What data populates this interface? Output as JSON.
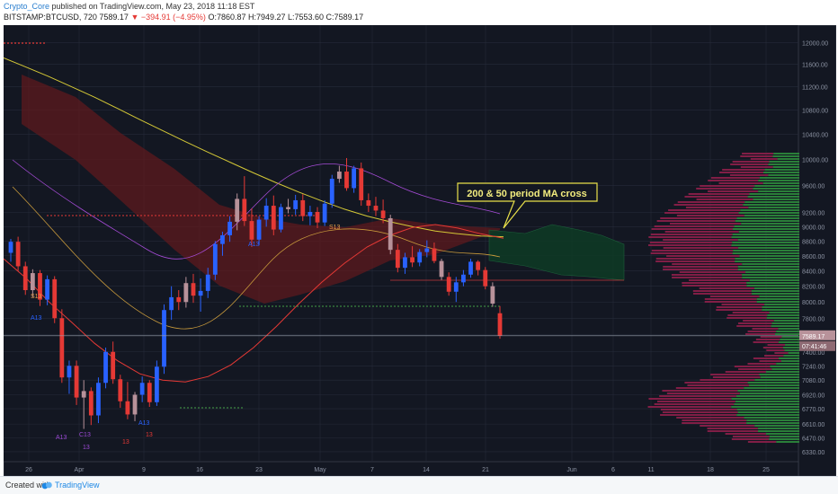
{
  "header": {
    "author": "Crypto_Core",
    "published_text": "published on TradingView.com, May 23, 2018 11:18 EST",
    "symbol": "BITSTAMP:BTCUSD, 720",
    "last_price": "7589.17",
    "change": "−394.91 (−4.95%)",
    "ohlc": "O:7860.87 H:7949.27 L:7553.60 C:7589.17"
  },
  "footer": {
    "created_with": "Created with",
    "brand": "TradingView"
  },
  "colors": {
    "background": "#131722",
    "grid": "#262b3a",
    "up_candle": "#2962ff",
    "down_candle": "#e53935",
    "neutral_candle": "#b8929a",
    "ma200": "#d4c836",
    "ma50": "#e53935",
    "cloud_bear": "#5e1a1d",
    "cloud_bull": "#0e3b25",
    "annotation_fill": "#131722",
    "annotation_border": "#e8e04a"
  },
  "chart_data": {
    "type": "candlestick",
    "symbol": "BITSTAMP:BTCUSD",
    "interval": "720",
    "x_tick_labels": [
      "26",
      "Apr",
      "9",
      "16",
      "23",
      "May",
      "7",
      "14",
      "21",
      "Jun",
      "6",
      "11",
      "18",
      "25"
    ],
    "y_tick_labels": [
      "12000.00",
      "11600.00",
      "11200.00",
      "10800.00",
      "10400.00",
      "10000.00",
      "9600.00",
      "9200.00",
      "9000.00",
      "8800.00",
      "8600.00",
      "8400.00",
      "8200.00",
      "8000.00",
      "7800.00",
      "7600.00",
      "7400.00",
      "7240.00",
      "7080.00",
      "6920.00",
      "6770.00",
      "6610.00",
      "6470.00",
      "6330.00"
    ],
    "y_scale": "log",
    "ylim": [
      6250,
      12300
    ],
    "price_labels": [
      "7589.17",
      "07:41:46"
    ],
    "annotation": "200 & 50 period MA cross",
    "signal_labels": [
      "S13",
      "A13",
      "S13",
      "A13",
      "A13",
      "C13",
      "A13",
      "13",
      "13",
      "13"
    ],
    "ohlc_last": {
      "open": 7860.87,
      "high": 7949.27,
      "low": 7553.6,
      "close": 7589.17
    },
    "moving_averages": [
      {
        "name": "MA 200",
        "values": [
          11720,
          11550,
          11380,
          11200,
          11020,
          10830,
          10640,
          10460,
          10280,
          10110,
          9950,
          9790,
          9640,
          9500,
          9370,
          9250,
          9150,
          9070,
          9000,
          8940,
          8900,
          8870,
          8860
        ]
      },
      {
        "name": "MA 50",
        "values": [
          8560,
          8300,
          8000,
          7750,
          7500,
          7300,
          7150,
          7080,
          7060,
          7120,
          7250,
          7450,
          7700,
          7980,
          8250,
          8500,
          8720,
          8880,
          8990,
          9030,
          8980,
          8900,
          8840
        ]
      }
    ],
    "candles": [
      {
        "o": 8640,
        "h": 8830,
        "l": 8520,
        "c": 8790
      },
      {
        "o": 8790,
        "h": 8860,
        "l": 8400,
        "c": 8460
      },
      {
        "o": 8460,
        "h": 8520,
        "l": 8090,
        "c": 8150
      },
      {
        "o": 8150,
        "h": 8420,
        "l": 8060,
        "c": 8370
      },
      {
        "o": 8370,
        "h": 8410,
        "l": 7950,
        "c": 8030
      },
      {
        "o": 8030,
        "h": 8340,
        "l": 7960,
        "c": 8290
      },
      {
        "o": 8290,
        "h": 8330,
        "l": 7740,
        "c": 7800
      },
      {
        "o": 7800,
        "h": 7910,
        "l": 7050,
        "c": 7110
      },
      {
        "o": 7110,
        "h": 7300,
        "l": 6930,
        "c": 7240
      },
      {
        "o": 7240,
        "h": 7300,
        "l": 6810,
        "c": 6890
      },
      {
        "o": 6890,
        "h": 7080,
        "l": 6560,
        "c": 6960
      },
      {
        "o": 6960,
        "h": 7000,
        "l": 6600,
        "c": 6700
      },
      {
        "o": 6700,
        "h": 7110,
        "l": 6620,
        "c": 7050
      },
      {
        "o": 7050,
        "h": 7450,
        "l": 6990,
        "c": 7400
      },
      {
        "o": 7400,
        "h": 7520,
        "l": 7040,
        "c": 7090
      },
      {
        "o": 7090,
        "h": 7140,
        "l": 6780,
        "c": 6850
      },
      {
        "o": 6850,
        "h": 7060,
        "l": 6660,
        "c": 6710
      },
      {
        "o": 6710,
        "h": 6950,
        "l": 6640,
        "c": 6920
      },
      {
        "o": 6920,
        "h": 7120,
        "l": 6840,
        "c": 7050
      },
      {
        "o": 7050,
        "h": 7080,
        "l": 6790,
        "c": 6840
      },
      {
        "o": 6840,
        "h": 7300,
        "l": 6800,
        "c": 7230
      },
      {
        "o": 7230,
        "h": 7970,
        "l": 7150,
        "c": 7900
      },
      {
        "o": 7900,
        "h": 8200,
        "l": 7780,
        "c": 8060
      },
      {
        "o": 8060,
        "h": 8150,
        "l": 7900,
        "c": 8000
      },
      {
        "o": 8000,
        "h": 8320,
        "l": 7930,
        "c": 8240
      },
      {
        "o": 8240,
        "h": 8360,
        "l": 7990,
        "c": 8080
      },
      {
        "o": 8080,
        "h": 8300,
        "l": 7880,
        "c": 8140
      },
      {
        "o": 8140,
        "h": 8440,
        "l": 8050,
        "c": 8350
      },
      {
        "o": 8350,
        "h": 8800,
        "l": 8280,
        "c": 8760
      },
      {
        "o": 8760,
        "h": 8930,
        "l": 8600,
        "c": 8880
      },
      {
        "o": 8880,
        "h": 9150,
        "l": 8790,
        "c": 9070
      },
      {
        "o": 9070,
        "h": 9480,
        "l": 8950,
        "c": 9400
      },
      {
        "o": 9400,
        "h": 9740,
        "l": 9010,
        "c": 9080
      },
      {
        "o": 9080,
        "h": 9260,
        "l": 8720,
        "c": 8820
      },
      {
        "o": 8820,
        "h": 9150,
        "l": 8740,
        "c": 9100
      },
      {
        "o": 9100,
        "h": 9410,
        "l": 9000,
        "c": 9300
      },
      {
        "o": 9300,
        "h": 9450,
        "l": 8880,
        "c": 8960
      },
      {
        "o": 8960,
        "h": 9330,
        "l": 8920,
        "c": 9280
      },
      {
        "o": 9280,
        "h": 9400,
        "l": 9190,
        "c": 9250
      },
      {
        "o": 9250,
        "h": 9460,
        "l": 9170,
        "c": 9380
      },
      {
        "o": 9380,
        "h": 9470,
        "l": 9080,
        "c": 9150
      },
      {
        "o": 9150,
        "h": 9300,
        "l": 9020,
        "c": 9210
      },
      {
        "o": 9210,
        "h": 9280,
        "l": 8980,
        "c": 9060
      },
      {
        "o": 9060,
        "h": 9380,
        "l": 9010,
        "c": 9330
      },
      {
        "o": 9330,
        "h": 9760,
        "l": 9270,
        "c": 9700
      },
      {
        "o": 9700,
        "h": 9900,
        "l": 9640,
        "c": 9810
      },
      {
        "o": 9810,
        "h": 10020,
        "l": 9520,
        "c": 9560
      },
      {
        "o": 9560,
        "h": 9900,
        "l": 9490,
        "c": 9860
      },
      {
        "o": 9860,
        "h": 9950,
        "l": 9300,
        "c": 9380
      },
      {
        "o": 9380,
        "h": 9480,
        "l": 9210,
        "c": 9300
      },
      {
        "o": 9300,
        "h": 9430,
        "l": 9150,
        "c": 9230
      },
      {
        "o": 9230,
        "h": 9390,
        "l": 9050,
        "c": 9120
      },
      {
        "o": 9120,
        "h": 9170,
        "l": 8620,
        "c": 8680
      },
      {
        "o": 8680,
        "h": 8760,
        "l": 8380,
        "c": 8440
      },
      {
        "o": 8440,
        "h": 8640,
        "l": 8360,
        "c": 8580
      },
      {
        "o": 8580,
        "h": 8730,
        "l": 8450,
        "c": 8510
      },
      {
        "o": 8510,
        "h": 8690,
        "l": 8460,
        "c": 8650
      },
      {
        "o": 8650,
        "h": 8810,
        "l": 8580,
        "c": 8700
      },
      {
        "o": 8700,
        "h": 8780,
        "l": 8500,
        "c": 8530
      },
      {
        "o": 8530,
        "h": 8560,
        "l": 8280,
        "c": 8320
      },
      {
        "o": 8320,
        "h": 8380,
        "l": 8080,
        "c": 8130
      },
      {
        "o": 8130,
        "h": 8320,
        "l": 8000,
        "c": 8250
      },
      {
        "o": 8250,
        "h": 8410,
        "l": 8200,
        "c": 8350
      },
      {
        "o": 8350,
        "h": 8560,
        "l": 8310,
        "c": 8520
      },
      {
        "o": 8520,
        "h": 8540,
        "l": 8340,
        "c": 8410
      },
      {
        "o": 8410,
        "h": 8450,
        "l": 8160,
        "c": 8200
      },
      {
        "o": 8200,
        "h": 8250,
        "l": 7940,
        "c": 7980
      },
      {
        "o": 7860.87,
        "h": 7949.27,
        "l": 7553.6,
        "c": 7589.17
      }
    ],
    "volume_profile_note": "horizontal volume-by-price histogram on right side",
    "grid": true
  }
}
